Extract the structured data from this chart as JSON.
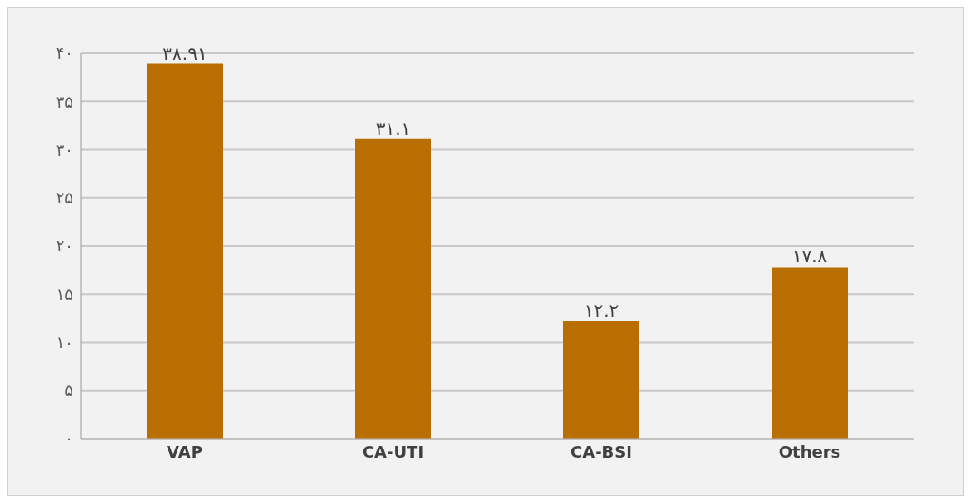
{
  "chart_data": {
    "type": "bar",
    "categories": [
      "VAP",
      "CA-UTI",
      "CA-BSI",
      "Others"
    ],
    "values": [
      38.91,
      31.1,
      12.2,
      17.8
    ],
    "color": "#b86e00",
    "value_labels": [
      "۳۸.۹۱",
      "۳۱.۱",
      "۱۲.۲",
      "۱۷.۸"
    ],
    "ylim": [
      0,
      40
    ],
    "yticks": [
      {
        "value": 0,
        "label": "۰"
      },
      {
        "value": 5,
        "label": "۵"
      },
      {
        "value": 10,
        "label": "۱۰"
      },
      {
        "value": 15,
        "label": "۱۵"
      },
      {
        "value": 20,
        "label": "۲۰"
      },
      {
        "value": 25,
        "label": "۲۵"
      },
      {
        "value": 30,
        "label": "۳۰"
      },
      {
        "value": 35,
        "label": "۳۵"
      },
      {
        "value": 40,
        "label": "۴۰"
      }
    ],
    "grid": "y"
  }
}
